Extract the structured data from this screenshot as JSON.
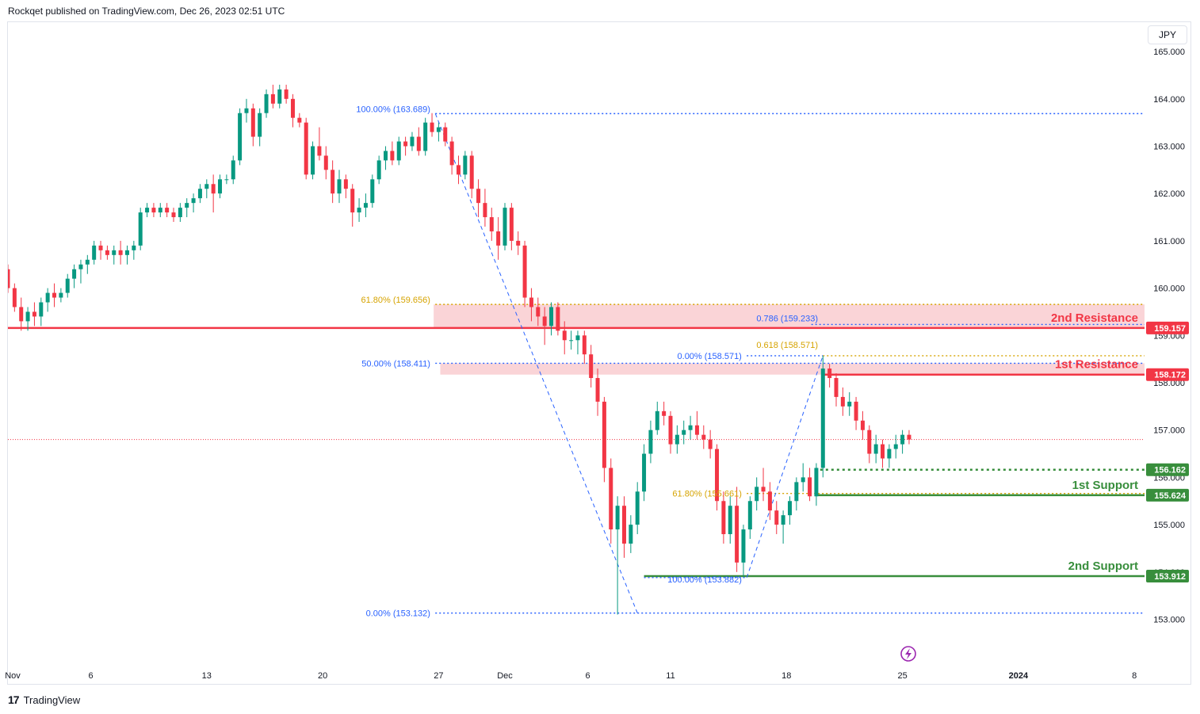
{
  "header": {
    "published": "Rockqet published on TradingView.com, Dec 26, 2023 02:51 UTC"
  },
  "currency_label": "JPY",
  "footer": {
    "brand": "TradingView"
  },
  "colors": {
    "up": "#089981",
    "down": "#f23645",
    "resistance": "#f23645",
    "support": "#388e3c",
    "fib": "#2962ff",
    "fib_gold": "#d6a300",
    "zone": "#f8c6c9",
    "axis_text": "#131722"
  },
  "chart_data": {
    "type": "candlestick",
    "symbol_currency": "JPY",
    "ylim": [
      152.7,
      165.4
    ],
    "y_ticks": [
      165,
      164,
      163,
      162,
      161,
      160,
      159,
      158,
      157,
      156,
      155,
      154,
      153
    ],
    "y_tick_labels": [
      "165.000",
      "164.000",
      "163.000",
      "162.000",
      "161.000",
      "160.000",
      "159.000",
      "158.000",
      "157.000",
      "156.000",
      "155.000",
      "154.000",
      "153.000"
    ],
    "x_ticks": [
      {
        "label": "Nov",
        "day": 0
      },
      {
        "label": "6",
        "day": 5
      },
      {
        "label": "13",
        "day": 12
      },
      {
        "label": "20",
        "day": 19
      },
      {
        "label": "27",
        "day": 26
      },
      {
        "label": "Dec",
        "day": 30
      },
      {
        "label": "6",
        "day": 35
      },
      {
        "label": "11",
        "day": 40
      },
      {
        "label": "18",
        "day": 47
      },
      {
        "label": "25",
        "day": 54
      },
      {
        "label": "2024",
        "day": 61
      },
      {
        "label": "8",
        "day": 68
      }
    ],
    "x_range_days": [
      0,
      71
    ],
    "current_price": 156.8,
    "levels": [
      {
        "name": "2nd Resistance",
        "price": 159.157,
        "label": "159.157",
        "kind": "resistance",
        "from_day": 0
      },
      {
        "name": "1st Resistance",
        "price": 158.172,
        "label": "158.172",
        "kind": "resistance",
        "from_day": 49.2
      },
      {
        "name": "1st Support",
        "price": 155.624,
        "label": "155.624",
        "kind": "support",
        "from_day": 48.7
      },
      {
        "name": "2nd Support",
        "price": 153.912,
        "label": "153.912",
        "kind": "support",
        "from_day": 38.4
      },
      {
        "name": "",
        "price": 156.162,
        "label": "156.162",
        "kind": "support-dotted",
        "from_day": 48.7
      }
    ],
    "zones": [
      {
        "low": 159.157,
        "high": 159.656,
        "from_day": 25.7
      },
      {
        "low": 158.172,
        "high": 158.411,
        "from_day": 26.1
      }
    ],
    "fib_lines": [
      {
        "text": "100.00% (163.689)",
        "price": 163.689,
        "from_day": 25.8,
        "to_day": 69.4,
        "color": "fib"
      },
      {
        "text": "61.80% (159.656)",
        "price": 159.656,
        "from_day": 25.8,
        "to_day": 69.4,
        "color": "fib_gold"
      },
      {
        "text": "50.00% (158.411)",
        "price": 158.411,
        "from_day": 25.8,
        "to_day": 69.4,
        "color": "fib"
      },
      {
        "text": "0.00% (153.132)",
        "price": 153.132,
        "from_day": 25.8,
        "to_day": 69.4,
        "color": "fib"
      },
      {
        "text": "0.786 (159.233)",
        "price": 159.233,
        "from_day": 48.5,
        "to_day": 69.4,
        "color": "fib"
      },
      {
        "text": "0.618 (158.571)",
        "price": 158.571,
        "from_day": 49.2,
        "to_day": 69.4,
        "color": "fib_gold"
      },
      {
        "text": "0.00% (158.571)",
        "price": 158.571,
        "from_day": 44.6,
        "to_day": 49.2,
        "color": "fib"
      },
      {
        "text": "61.80% (155.661)",
        "price": 155.661,
        "from_day": 44.6,
        "to_day": 69.4,
        "color": "fib_gold"
      },
      {
        "text": "100.00% (153.882)",
        "price": 153.882,
        "from_day": 38.4,
        "to_day": 44.6,
        "color": "fib"
      }
    ],
    "trend_lines": [
      {
        "x1": 25.8,
        "y1": 163.689,
        "x2": 38.0,
        "y2": 153.132
      },
      {
        "x1": 44.6,
        "y1": 153.882,
        "x2": 49.2,
        "y2": 158.571
      }
    ],
    "ohlc": [
      [
        0,
        160.4,
        160.5,
        159.9,
        160.0
      ],
      [
        0.4,
        160.0,
        160.1,
        159.5,
        159.6
      ],
      [
        0.8,
        159.6,
        159.8,
        159.1,
        159.3
      ],
      [
        1.2,
        159.3,
        159.6,
        159.1,
        159.5
      ],
      [
        1.6,
        159.5,
        159.7,
        159.2,
        159.4
      ],
      [
        2.0,
        159.4,
        159.8,
        159.2,
        159.7
      ],
      [
        2.4,
        159.7,
        160.0,
        159.5,
        159.9
      ],
      [
        2.8,
        159.9,
        160.1,
        159.6,
        159.8
      ],
      [
        3.2,
        159.8,
        160.0,
        159.7,
        159.9
      ],
      [
        3.6,
        159.9,
        160.3,
        159.8,
        160.2
      ],
      [
        4.0,
        160.2,
        160.5,
        160.0,
        160.4
      ],
      [
        4.4,
        160.4,
        160.6,
        160.1,
        160.5
      ],
      [
        4.8,
        160.5,
        160.7,
        160.3,
        160.6
      ],
      [
        5.2,
        160.6,
        161.0,
        160.5,
        160.9
      ],
      [
        5.6,
        160.9,
        161.0,
        160.6,
        160.8
      ],
      [
        6.0,
        160.8,
        160.9,
        160.6,
        160.7
      ],
      [
        6.4,
        160.7,
        160.9,
        160.5,
        160.8
      ],
      [
        6.8,
        160.8,
        161.0,
        160.5,
        160.7
      ],
      [
        7.2,
        160.7,
        160.9,
        160.5,
        160.8
      ],
      [
        7.6,
        160.8,
        161.0,
        160.6,
        160.9
      ],
      [
        8.0,
        160.9,
        161.7,
        160.8,
        161.6
      ],
      [
        8.4,
        161.6,
        161.8,
        161.5,
        161.7
      ],
      [
        8.8,
        161.7,
        161.8,
        161.5,
        161.6
      ],
      [
        9.2,
        161.6,
        161.8,
        161.5,
        161.7
      ],
      [
        9.6,
        161.7,
        161.8,
        161.5,
        161.6
      ],
      [
        10.0,
        161.6,
        161.7,
        161.4,
        161.5
      ],
      [
        10.4,
        161.5,
        161.8,
        161.4,
        161.7
      ],
      [
        10.8,
        161.7,
        161.9,
        161.5,
        161.8
      ],
      [
        11.2,
        161.8,
        162.0,
        161.6,
        161.9
      ],
      [
        11.6,
        161.9,
        162.2,
        161.8,
        162.1
      ],
      [
        12.0,
        162.1,
        162.3,
        161.9,
        162.2
      ],
      [
        12.4,
        162.2,
        162.4,
        161.6,
        162.0
      ],
      [
        12.8,
        162.0,
        162.4,
        161.9,
        162.3
      ],
      [
        13.2,
        162.3,
        162.4,
        162.2,
        162.3
      ],
      [
        13.6,
        162.3,
        162.8,
        162.2,
        162.7
      ],
      [
        14.0,
        162.7,
        163.8,
        162.6,
        163.7
      ],
      [
        14.4,
        163.7,
        164.0,
        163.5,
        163.8
      ],
      [
        14.8,
        163.8,
        163.9,
        163.0,
        163.2
      ],
      [
        15.2,
        163.2,
        163.8,
        163.0,
        163.7
      ],
      [
        15.6,
        163.7,
        164.2,
        163.6,
        164.1
      ],
      [
        16.0,
        164.1,
        164.3,
        163.8,
        163.9
      ],
      [
        16.4,
        163.9,
        164.3,
        163.8,
        164.2
      ],
      [
        16.8,
        164.2,
        164.3,
        163.9,
        164.0
      ],
      [
        17.2,
        164.0,
        164.1,
        163.4,
        163.6
      ],
      [
        17.6,
        163.6,
        163.7,
        163.4,
        163.5
      ],
      [
        18.0,
        163.5,
        163.6,
        162.3,
        162.4
      ],
      [
        18.4,
        162.4,
        163.1,
        162.3,
        163.0
      ],
      [
        18.8,
        163.0,
        163.4,
        162.7,
        162.8
      ],
      [
        19.2,
        162.8,
        163.0,
        162.3,
        162.5
      ],
      [
        19.6,
        162.5,
        162.7,
        161.8,
        162.0
      ],
      [
        20.0,
        162.0,
        162.5,
        161.8,
        162.3
      ],
      [
        20.4,
        162.3,
        162.4,
        161.9,
        162.1
      ],
      [
        20.8,
        162.1,
        162.2,
        161.3,
        161.6
      ],
      [
        21.2,
        161.6,
        161.9,
        161.4,
        161.7
      ],
      [
        21.6,
        161.7,
        162.0,
        161.5,
        161.8
      ],
      [
        22.0,
        161.8,
        162.4,
        161.7,
        162.3
      ],
      [
        22.4,
        162.3,
        162.8,
        162.2,
        162.7
      ],
      [
        22.8,
        162.7,
        163.0,
        162.5,
        162.9
      ],
      [
        23.2,
        162.9,
        163.1,
        162.6,
        162.7
      ],
      [
        23.6,
        162.7,
        163.2,
        162.6,
        163.1
      ],
      [
        24.0,
        163.1,
        163.2,
        162.8,
        163.0
      ],
      [
        24.4,
        163.0,
        163.3,
        162.9,
        163.2
      ],
      [
        24.8,
        163.2,
        163.4,
        162.8,
        162.9
      ],
      [
        25.2,
        162.9,
        163.6,
        162.8,
        163.5
      ],
      [
        25.6,
        163.5,
        163.7,
        163.2,
        163.3
      ],
      [
        26.0,
        163.3,
        163.5,
        163.1,
        163.4
      ],
      [
        26.4,
        163.4,
        163.5,
        163.0,
        163.1
      ],
      [
        26.8,
        163.1,
        163.2,
        162.4,
        162.6
      ],
      [
        27.2,
        162.6,
        162.8,
        162.2,
        162.4
      ],
      [
        27.6,
        162.4,
        162.9,
        162.3,
        162.8
      ],
      [
        28.0,
        162.8,
        162.9,
        161.9,
        162.1
      ],
      [
        28.4,
        162.1,
        162.3,
        161.5,
        161.8
      ],
      [
        28.8,
        161.8,
        162.1,
        161.3,
        161.5
      ],
      [
        29.2,
        161.5,
        161.7,
        161.0,
        161.2
      ],
      [
        29.6,
        161.2,
        161.5,
        160.6,
        160.9
      ],
      [
        30.0,
        160.9,
        161.8,
        160.8,
        161.7
      ],
      [
        30.4,
        161.7,
        161.8,
        160.8,
        161.0
      ],
      [
        30.8,
        161.0,
        161.2,
        160.7,
        160.9
      ],
      [
        31.2,
        160.9,
        161.0,
        159.6,
        159.8
      ],
      [
        31.6,
        159.8,
        160.0,
        159.3,
        159.6
      ],
      [
        32.0,
        159.6,
        159.8,
        159.2,
        159.4
      ],
      [
        32.4,
        159.4,
        159.6,
        158.8,
        159.2
      ],
      [
        32.8,
        159.2,
        159.7,
        159.0,
        159.6
      ],
      [
        33.2,
        159.6,
        159.7,
        159.0,
        159.1
      ],
      [
        33.6,
        159.1,
        159.3,
        158.6,
        158.9
      ],
      [
        34.0,
        158.9,
        159.1,
        158.7,
        158.9
      ],
      [
        34.4,
        158.9,
        159.1,
        158.6,
        159.0
      ],
      [
        34.8,
        159.0,
        159.1,
        158.4,
        158.6
      ],
      [
        35.2,
        158.6,
        158.8,
        157.9,
        158.1
      ],
      [
        35.6,
        158.1,
        158.3,
        157.3,
        157.6
      ],
      [
        36.0,
        157.6,
        157.7,
        155.9,
        156.2
      ],
      [
        36.4,
        156.2,
        156.4,
        154.6,
        154.9
      ],
      [
        36.8,
        154.9,
        155.6,
        153.1,
        155.4
      ],
      [
        37.2,
        155.4,
        155.6,
        154.3,
        154.6
      ],
      [
        37.6,
        154.6,
        155.2,
        154.4,
        155.0
      ],
      [
        38.0,
        155.0,
        155.9,
        154.8,
        155.7
      ],
      [
        38.4,
        155.7,
        156.7,
        155.5,
        156.5
      ],
      [
        38.8,
        156.5,
        157.2,
        156.3,
        157.0
      ],
      [
        39.2,
        157.0,
        157.6,
        156.9,
        157.4
      ],
      [
        39.6,
        157.4,
        157.6,
        157.1,
        157.3
      ],
      [
        40.0,
        157.3,
        157.4,
        156.5,
        156.7
      ],
      [
        40.4,
        156.7,
        157.1,
        156.5,
        156.9
      ],
      [
        40.8,
        156.9,
        157.2,
        156.7,
        157.0
      ],
      [
        41.2,
        157.0,
        157.3,
        156.8,
        157.1
      ],
      [
        41.6,
        157.1,
        157.4,
        156.8,
        156.9
      ],
      [
        42.0,
        156.9,
        157.1,
        156.6,
        156.8
      ],
      [
        42.4,
        156.8,
        157.0,
        156.4,
        156.6
      ],
      [
        42.8,
        156.6,
        156.7,
        155.3,
        155.5
      ],
      [
        43.2,
        155.5,
        155.7,
        154.6,
        154.8
      ],
      [
        43.6,
        154.8,
        155.6,
        154.6,
        155.4
      ],
      [
        44.0,
        155.4,
        155.8,
        154.0,
        154.2
      ],
      [
        44.4,
        154.2,
        155.0,
        153.9,
        154.9
      ],
      [
        44.8,
        154.9,
        155.6,
        154.7,
        155.5
      ],
      [
        45.2,
        155.5,
        156.0,
        155.3,
        155.8
      ],
      [
        45.6,
        155.8,
        156.2,
        155.5,
        155.7
      ],
      [
        46.0,
        155.7,
        155.9,
        155.1,
        155.3
      ],
      [
        46.4,
        155.3,
        155.5,
        154.8,
        155.0
      ],
      [
        46.8,
        155.0,
        155.3,
        154.6,
        155.2
      ],
      [
        47.2,
        155.2,
        155.6,
        155.0,
        155.5
      ],
      [
        47.6,
        155.5,
        156.0,
        155.3,
        155.9
      ],
      [
        48.0,
        155.9,
        156.3,
        155.7,
        156.0
      ],
      [
        48.4,
        156.0,
        156.2,
        155.5,
        155.6
      ],
      [
        48.8,
        155.6,
        156.3,
        155.4,
        156.2
      ],
      [
        49.2,
        156.2,
        158.57,
        156.0,
        158.3
      ],
      [
        49.6,
        158.3,
        158.4,
        157.9,
        158.1
      ],
      [
        50.0,
        158.1,
        158.2,
        157.5,
        157.7
      ],
      [
        50.4,
        157.7,
        157.9,
        157.3,
        157.5
      ],
      [
        50.8,
        157.5,
        157.8,
        157.3,
        157.6
      ],
      [
        51.2,
        157.6,
        157.7,
        157.0,
        157.2
      ],
      [
        51.6,
        157.2,
        157.4,
        156.8,
        157.0
      ],
      [
        52.0,
        157.0,
        157.1,
        156.3,
        156.5
      ],
      [
        52.4,
        156.5,
        156.9,
        156.3,
        156.7
      ],
      [
        52.8,
        156.7,
        156.8,
        156.2,
        156.4
      ],
      [
        53.2,
        156.4,
        156.7,
        156.2,
        156.6
      ],
      [
        53.6,
        156.6,
        156.9,
        156.4,
        156.7
      ],
      [
        54.0,
        156.7,
        157.0,
        156.5,
        156.9
      ],
      [
        54.4,
        156.9,
        157.0,
        156.7,
        156.8
      ]
    ]
  }
}
